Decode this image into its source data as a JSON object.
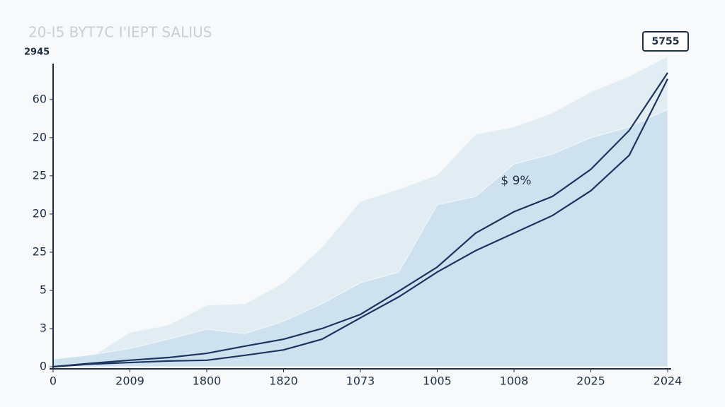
{
  "chart_data": {
    "type": "line",
    "title": "20-I5 BYT7C I'IEPT SALIUS",
    "corner_label": "2945",
    "box_label": "5755",
    "annotation": "$ 9%",
    "x": [
      0,
      0.5,
      1,
      1.5,
      2,
      2.5,
      3,
      3.5,
      4,
      4.5,
      5,
      5.5,
      6,
      6.5,
      7,
      7.5,
      8
    ],
    "xlim": [
      0,
      8
    ],
    "xticks": [
      {
        "value": 0,
        "label": "0"
      },
      {
        "value": 1,
        "label": "2009"
      },
      {
        "value": 2,
        "label": "1800"
      },
      {
        "value": 3,
        "label": "1820"
      },
      {
        "value": 4,
        "label": "1073"
      },
      {
        "value": 5,
        "label": "1005"
      },
      {
        "value": 6,
        "label": "1008"
      },
      {
        "value": 7,
        "label": "2025"
      },
      {
        "value": 8,
        "label": "2024"
      }
    ],
    "ylim": [
      0,
      8.2
    ],
    "yticks": [
      {
        "value": 0,
        "label": "0"
      },
      {
        "value": 1,
        "label": "3"
      },
      {
        "value": 2,
        "label": "5"
      },
      {
        "value": 3,
        "label": "25"
      },
      {
        "value": 4,
        "label": "20"
      },
      {
        "value": 5,
        "label": "25"
      },
      {
        "value": 6,
        "label": "20"
      },
      {
        "value": 7,
        "label": "60"
      }
    ],
    "series": [
      {
        "color": "#e2ecf3",
        "fill": true,
        "values": [
          0.2,
          0.26,
          0.9,
          1.09,
          1.61,
          1.65,
          2.2,
          3.13,
          4.33,
          4.65,
          5.02,
          6.09,
          6.28,
          6.65,
          7.2,
          7.61,
          8.13
        ]
      },
      {
        "color": "#cde2ee",
        "fill": true,
        "values": [
          0.2,
          0.31,
          0.48,
          0.72,
          0.98,
          0.87,
          1.19,
          1.65,
          2.2,
          2.48,
          4.24,
          4.46,
          5.31,
          5.57,
          6.0,
          6.28,
          6.74
        ]
      },
      {
        "color": "#1c3560",
        "fill": false,
        "values": [
          0,
          0.09,
          0.17,
          0.24,
          0.35,
          0.54,
          0.72,
          1.0,
          1.37,
          1.98,
          2.61,
          3.5,
          4.06,
          4.46,
          5.17,
          6.19,
          7.7
        ]
      },
      {
        "color": "#1c3560",
        "fill": false,
        "values": [
          0,
          0.07,
          0.11,
          0.15,
          0.17,
          0.3,
          0.44,
          0.72,
          1.28,
          1.83,
          2.48,
          3.04,
          3.5,
          3.96,
          4.61,
          5.54,
          7.54
        ]
      }
    ]
  }
}
